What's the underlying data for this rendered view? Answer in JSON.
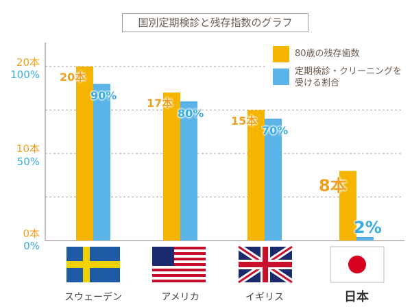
{
  "chart_data": {
    "type": "bar",
    "title": "国別定期検診と残存指数のグラフ",
    "categories": [
      "スウェーデン",
      "アメリカ",
      "イギリス",
      "日本"
    ],
    "series": [
      {
        "name": "80歳の残存歯数",
        "values": [
          20,
          17,
          15,
          8
        ],
        "labels": [
          "20本",
          "17本",
          "15本",
          "8本"
        ],
        "color": "#f5b400",
        "axis": "left",
        "ylim": [
          0,
          20
        ]
      },
      {
        "name": "定期検診・クリーニングを受ける割合",
        "values": [
          90,
          80,
          70,
          2
        ],
        "labels": [
          "90%",
          "80%",
          "70%",
          "2%"
        ],
        "color": "#5ab4e8",
        "axis": "right",
        "ylim": [
          0,
          100
        ]
      }
    ],
    "yticks_left": [
      "0本",
      "10本",
      "20本"
    ],
    "yticks_right": [
      "0%",
      "50%",
      "100%"
    ],
    "grid": true,
    "legend": "top-right",
    "flags": [
      "sweden-flag",
      "usa-flag",
      "uk-flag",
      "japan-flag"
    ]
  },
  "colors": {
    "orange_text": "#f0a020",
    "blue_text": "#3aacdf"
  }
}
